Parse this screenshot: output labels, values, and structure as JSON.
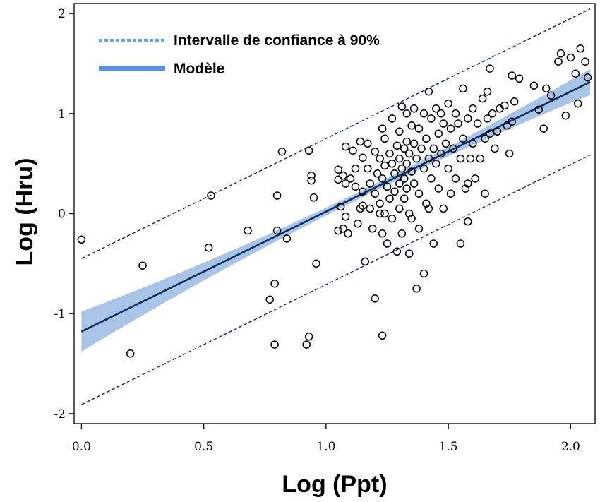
{
  "chart_data": {
    "type": "scatter",
    "xlabel": "Log (Ppt)",
    "ylabel": "Log (Hru)",
    "xlim": [
      -0.03,
      2.1
    ],
    "ylim": [
      -2.1,
      2.1
    ],
    "x_ticks": [
      0.0,
      0.5,
      1.0,
      1.5,
      2.0
    ],
    "x_tick_labels": [
      "0.0",
      "0.5",
      "1.0",
      "1.5",
      "2.0"
    ],
    "y_ticks": [
      -2,
      -1,
      0,
      1,
      2
    ],
    "y_tick_labels": [
      "-2",
      "-1",
      "0",
      "1",
      "2"
    ],
    "grid": false,
    "legend": {
      "placement": "top-left",
      "entries": [
        {
          "label": "Intervalle de confiance à 90%",
          "style": "dotted",
          "color": "#6fa0e6"
        },
        {
          "label": "Modèle",
          "style": "solid-thick",
          "color": "#5b8fe0"
        }
      ]
    },
    "model": {
      "intercept": -1.18,
      "slope": 1.2,
      "line_color": "#0b2e63",
      "band_color": "#a9c4e6",
      "band_half_width_start": 0.2,
      "band_half_width_center": 0.035,
      "band_center_x": 1.18,
      "band_half_width_end": 0.13,
      "pi_offset": 0.73,
      "pi_color": "#0b2e63"
    },
    "points": [
      [
        0.0,
        -0.26
      ],
      [
        0.2,
        -1.4
      ],
      [
        0.25,
        -0.52
      ],
      [
        0.52,
        -0.34
      ],
      [
        0.53,
        0.18
      ],
      [
        0.68,
        -0.17
      ],
      [
        0.77,
        -0.86
      ],
      [
        0.79,
        -0.7
      ],
      [
        0.79,
        -1.31
      ],
      [
        0.8,
        0.18
      ],
      [
        0.8,
        -0.17
      ],
      [
        0.82,
        0.62
      ],
      [
        0.84,
        -0.25
      ],
      [
        0.92,
        -1.31
      ],
      [
        0.93,
        -1.23
      ],
      [
        0.93,
        0.63
      ],
      [
        0.94,
        0.38
      ],
      [
        0.94,
        0.33
      ],
      [
        0.95,
        0.16
      ],
      [
        0.96,
        -0.5
      ],
      [
        1.05,
        0.44
      ],
      [
        1.05,
        0.34
      ],
      [
        1.05,
        -0.17
      ],
      [
        1.06,
        0.07
      ],
      [
        1.07,
        0.38
      ],
      [
        1.07,
        -0.15
      ],
      [
        1.08,
        0.67
      ],
      [
        1.08,
        0.3
      ],
      [
        1.08,
        -0.03
      ],
      [
        1.09,
        -0.2
      ],
      [
        1.1,
        0.35
      ],
      [
        1.11,
        0.63
      ],
      [
        1.12,
        0.45
      ],
      [
        1.12,
        0.27
      ],
      [
        1.13,
        -0.1
      ],
      [
        1.14,
        0.72
      ],
      [
        1.15,
        0.56
      ],
      [
        1.15,
        0.22
      ],
      [
        1.15,
        0.08
      ],
      [
        1.16,
        -0.48
      ],
      [
        1.17,
        0.7
      ],
      [
        1.17,
        0.45
      ],
      [
        1.18,
        0.3
      ],
      [
        1.18,
        0.05
      ],
      [
        1.19,
        -0.15
      ],
      [
        1.2,
        0.62
      ],
      [
        1.2,
        0.2
      ],
      [
        1.2,
        -0.85
      ],
      [
        1.21,
        0.4
      ],
      [
        1.22,
        0.55
      ],
      [
        1.22,
        0.1
      ],
      [
        1.23,
        0.85
      ],
      [
        1.23,
        0.35
      ],
      [
        1.23,
        -0.2
      ],
      [
        1.23,
        -1.22
      ],
      [
        1.24,
        0.75
      ],
      [
        1.24,
        0.48
      ],
      [
        1.24,
        0.0
      ],
      [
        1.25,
        0.27
      ],
      [
        1.25,
        -0.3
      ],
      [
        1.26,
        0.6
      ],
      [
        1.26,
        0.15
      ],
      [
        1.27,
        0.95
      ],
      [
        1.27,
        0.5
      ],
      [
        1.27,
        -0.05
      ],
      [
        1.28,
        0.4
      ],
      [
        1.28,
        0.22
      ],
      [
        1.29,
        0.68
      ],
      [
        1.29,
        -0.38
      ],
      [
        1.3,
        0.82
      ],
      [
        1.3,
        0.55
      ],
      [
        1.3,
        0.3
      ],
      [
        1.3,
        0.05
      ],
      [
        1.31,
        1.07
      ],
      [
        1.31,
        0.45
      ],
      [
        1.31,
        -0.2
      ],
      [
        1.32,
        0.65
      ],
      [
        1.32,
        0.35
      ],
      [
        1.32,
        0.15
      ],
      [
        1.33,
        1.0
      ],
      [
        1.33,
        0.72
      ],
      [
        1.33,
        0.5
      ],
      [
        1.33,
        0.25
      ],
      [
        1.34,
        0.6
      ],
      [
        1.34,
        0.0
      ],
      [
        1.34,
        -0.4
      ],
      [
        1.35,
        0.88
      ],
      [
        1.35,
        0.42
      ],
      [
        1.35,
        -0.05
      ],
      [
        1.36,
        1.05
      ],
      [
        1.36,
        0.7
      ],
      [
        1.36,
        0.3
      ],
      [
        1.37,
        0.55
      ],
      [
        1.37,
        -0.75
      ],
      [
        1.38,
        0.85
      ],
      [
        1.38,
        0.2
      ],
      [
        1.38,
        -0.15
      ],
      [
        1.39,
        0.65
      ],
      [
        1.4,
        1.0
      ],
      [
        1.4,
        0.45
      ],
      [
        1.4,
        -0.6
      ],
      [
        1.41,
        0.75
      ],
      [
        1.41,
        0.1
      ],
      [
        1.42,
        1.22
      ],
      [
        1.42,
        0.55
      ],
      [
        1.42,
        0.05
      ],
      [
        1.43,
        0.95
      ],
      [
        1.43,
        0.35
      ],
      [
        1.44,
        0.65
      ],
      [
        1.44,
        -0.3
      ],
      [
        1.45,
        1.05
      ],
      [
        1.45,
        0.5
      ],
      [
        1.46,
        0.8
      ],
      [
        1.46,
        0.25
      ],
      [
        1.47,
        1.0
      ],
      [
        1.47,
        0.6
      ],
      [
        1.48,
        0.9
      ],
      [
        1.48,
        0.05
      ],
      [
        1.49,
        0.7
      ],
      [
        1.5,
        1.1
      ],
      [
        1.5,
        0.45
      ],
      [
        1.51,
        0.85
      ],
      [
        1.51,
        0.2
      ],
      [
        1.52,
        0.65
      ],
      [
        1.53,
        1.0
      ],
      [
        1.53,
        0.35
      ],
      [
        1.54,
        0.9
      ],
      [
        1.55,
        0.55
      ],
      [
        1.55,
        -0.3
      ],
      [
        1.56,
        1.25
      ],
      [
        1.56,
        0.75
      ],
      [
        1.57,
        0.25
      ],
      [
        1.58,
        0.95
      ],
      [
        1.58,
        -0.08
      ],
      [
        1.59,
        0.55
      ],
      [
        1.6,
        1.05
      ],
      [
        1.6,
        0.7
      ],
      [
        1.61,
        0.35
      ],
      [
        1.62,
        0.9
      ],
      [
        1.63,
        0.55
      ],
      [
        1.64,
        1.15
      ],
      [
        1.65,
        0.75
      ],
      [
        1.65,
        0.2
      ],
      [
        1.66,
        1.22
      ],
      [
        1.66,
        0.95
      ],
      [
        1.67,
        1.45
      ],
      [
        1.67,
        0.8
      ],
      [
        1.68,
        1.0
      ],
      [
        1.69,
        0.65
      ],
      [
        1.7,
        0.82
      ],
      [
        1.71,
        1.05
      ],
      [
        1.73,
        1.08
      ],
      [
        1.74,
        0.88
      ],
      [
        1.75,
        0.6
      ],
      [
        1.76,
        1.38
      ],
      [
        1.76,
        0.92
      ],
      [
        1.77,
        1.12
      ],
      [
        1.79,
        1.35
      ],
      [
        1.85,
        1.28
      ],
      [
        1.87,
        1.04
      ],
      [
        1.89,
        0.85
      ],
      [
        1.9,
        1.25
      ],
      [
        1.95,
        1.52
      ],
      [
        1.96,
        1.6
      ],
      [
        1.98,
        0.98
      ],
      [
        2.0,
        1.56
      ],
      [
        2.02,
        1.4
      ],
      [
        2.03,
        1.1
      ],
      [
        2.04,
        1.65
      ],
      [
        2.06,
        1.52
      ],
      [
        2.07,
        1.36
      ],
      [
        1.92,
        1.18
      ],
      [
        1.58,
        0.3
      ],
      [
        1.22,
        0.0
      ],
      [
        1.14,
        0.05
      ]
    ]
  }
}
